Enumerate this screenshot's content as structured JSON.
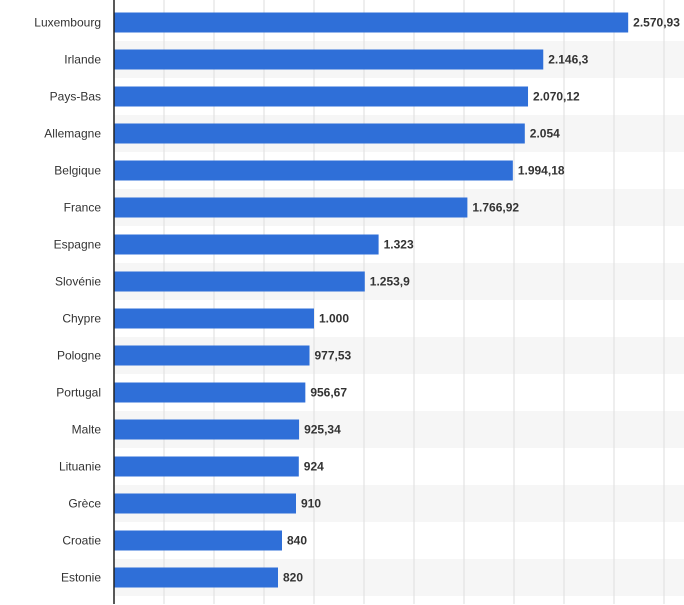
{
  "colors": {
    "bar": "#2f6fd8",
    "grid": "#dedede",
    "band": "#f6f6f6",
    "axis": "#222222",
    "text": "#333333"
  },
  "chart_data": {
    "type": "bar",
    "orientation": "horizontal",
    "title": "",
    "xlabel": "",
    "ylabel": "",
    "grid": true,
    "xlim": [
      0,
      2850
    ],
    "categories": [
      "Luxembourg",
      "Irlande",
      "Pays-Bas",
      "Allemagne",
      "Belgique",
      "France",
      "Espagne",
      "Slovénie",
      "Chypre",
      "Pologne",
      "Portugal",
      "Malte",
      "Lituanie",
      "Grèce",
      "Croatie",
      "Estonie"
    ],
    "values": [
      2570.93,
      2146.3,
      2070.12,
      2054,
      1994.18,
      1766.92,
      1323,
      1253.9,
      1000,
      977.53,
      956.67,
      925.34,
      924,
      910,
      840,
      820
    ],
    "value_labels": [
      "2.570,93",
      "2.146,3",
      "2.070,12",
      "2.054",
      "1.994,18",
      "1.766,92",
      "1.323",
      "1.253,9",
      "1.000",
      "977,53",
      "956,67",
      "925,34",
      "924",
      "910",
      "840",
      "820"
    ]
  }
}
